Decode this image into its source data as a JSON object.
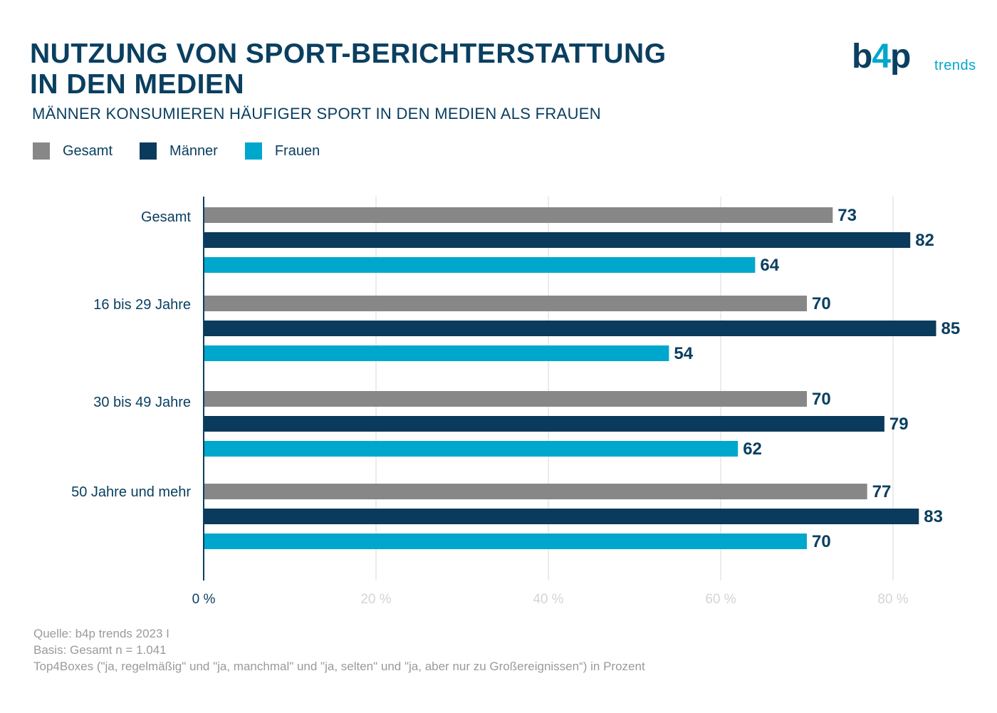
{
  "title": {
    "line1": "NUTZUNG VON SPORT-BERICHTERSTATTUNG",
    "line2": "IN DEN MEDIEN"
  },
  "subtitle": "MÄNNER KONSUMIEREN HÄUFIGER SPORT IN DEN MEDIEN ALS FRAUEN",
  "logo": {
    "mark_b": "b",
    "mark_four": "4",
    "mark_p": "p",
    "word": "trends"
  },
  "colors": {
    "gesamt": "#878787",
    "maenner": "#0a3a5c",
    "frauen": "#00a7cc",
    "title": "#0a3f60",
    "grid": "#e6e6e6"
  },
  "legend": [
    {
      "label": "Gesamt",
      "color": "#878787"
    },
    {
      "label": "Männer",
      "color": "#0a3a5c"
    },
    {
      "label": "Frauen",
      "color": "#00a7cc"
    }
  ],
  "chart_data": {
    "type": "bar",
    "orientation": "horizontal",
    "categories": [
      "Gesamt",
      "16 bis 29 Jahre",
      "30 bis 49 Jahre",
      "50 Jahre und mehr"
    ],
    "series": [
      {
        "name": "Gesamt",
        "color": "#878787",
        "values": [
          73,
          70,
          70,
          77
        ]
      },
      {
        "name": "Männer",
        "color": "#0a3a5c",
        "values": [
          82,
          85,
          79,
          83
        ]
      },
      {
        "name": "Frauen",
        "color": "#00a7cc",
        "values": [
          64,
          54,
          62,
          70
        ]
      }
    ],
    "xticks": [
      "0 %",
      "20 %",
      "40 %",
      "60 %",
      "80 %"
    ],
    "xtick_values": [
      0,
      20,
      40,
      60,
      80
    ],
    "xlim": [
      0,
      86
    ],
    "grid": true,
    "legend_position": "top-left"
  },
  "sources": [
    "Quelle: b4p trends 2023 I",
    "Basis: Gesamt n = 1.041",
    "Top4Boxes (\"ja, regelmäßig\" und \"ja, manchmal\" und \"ja, selten\" und \"ja, aber nur zu Großereignissen“) in Prozent"
  ]
}
